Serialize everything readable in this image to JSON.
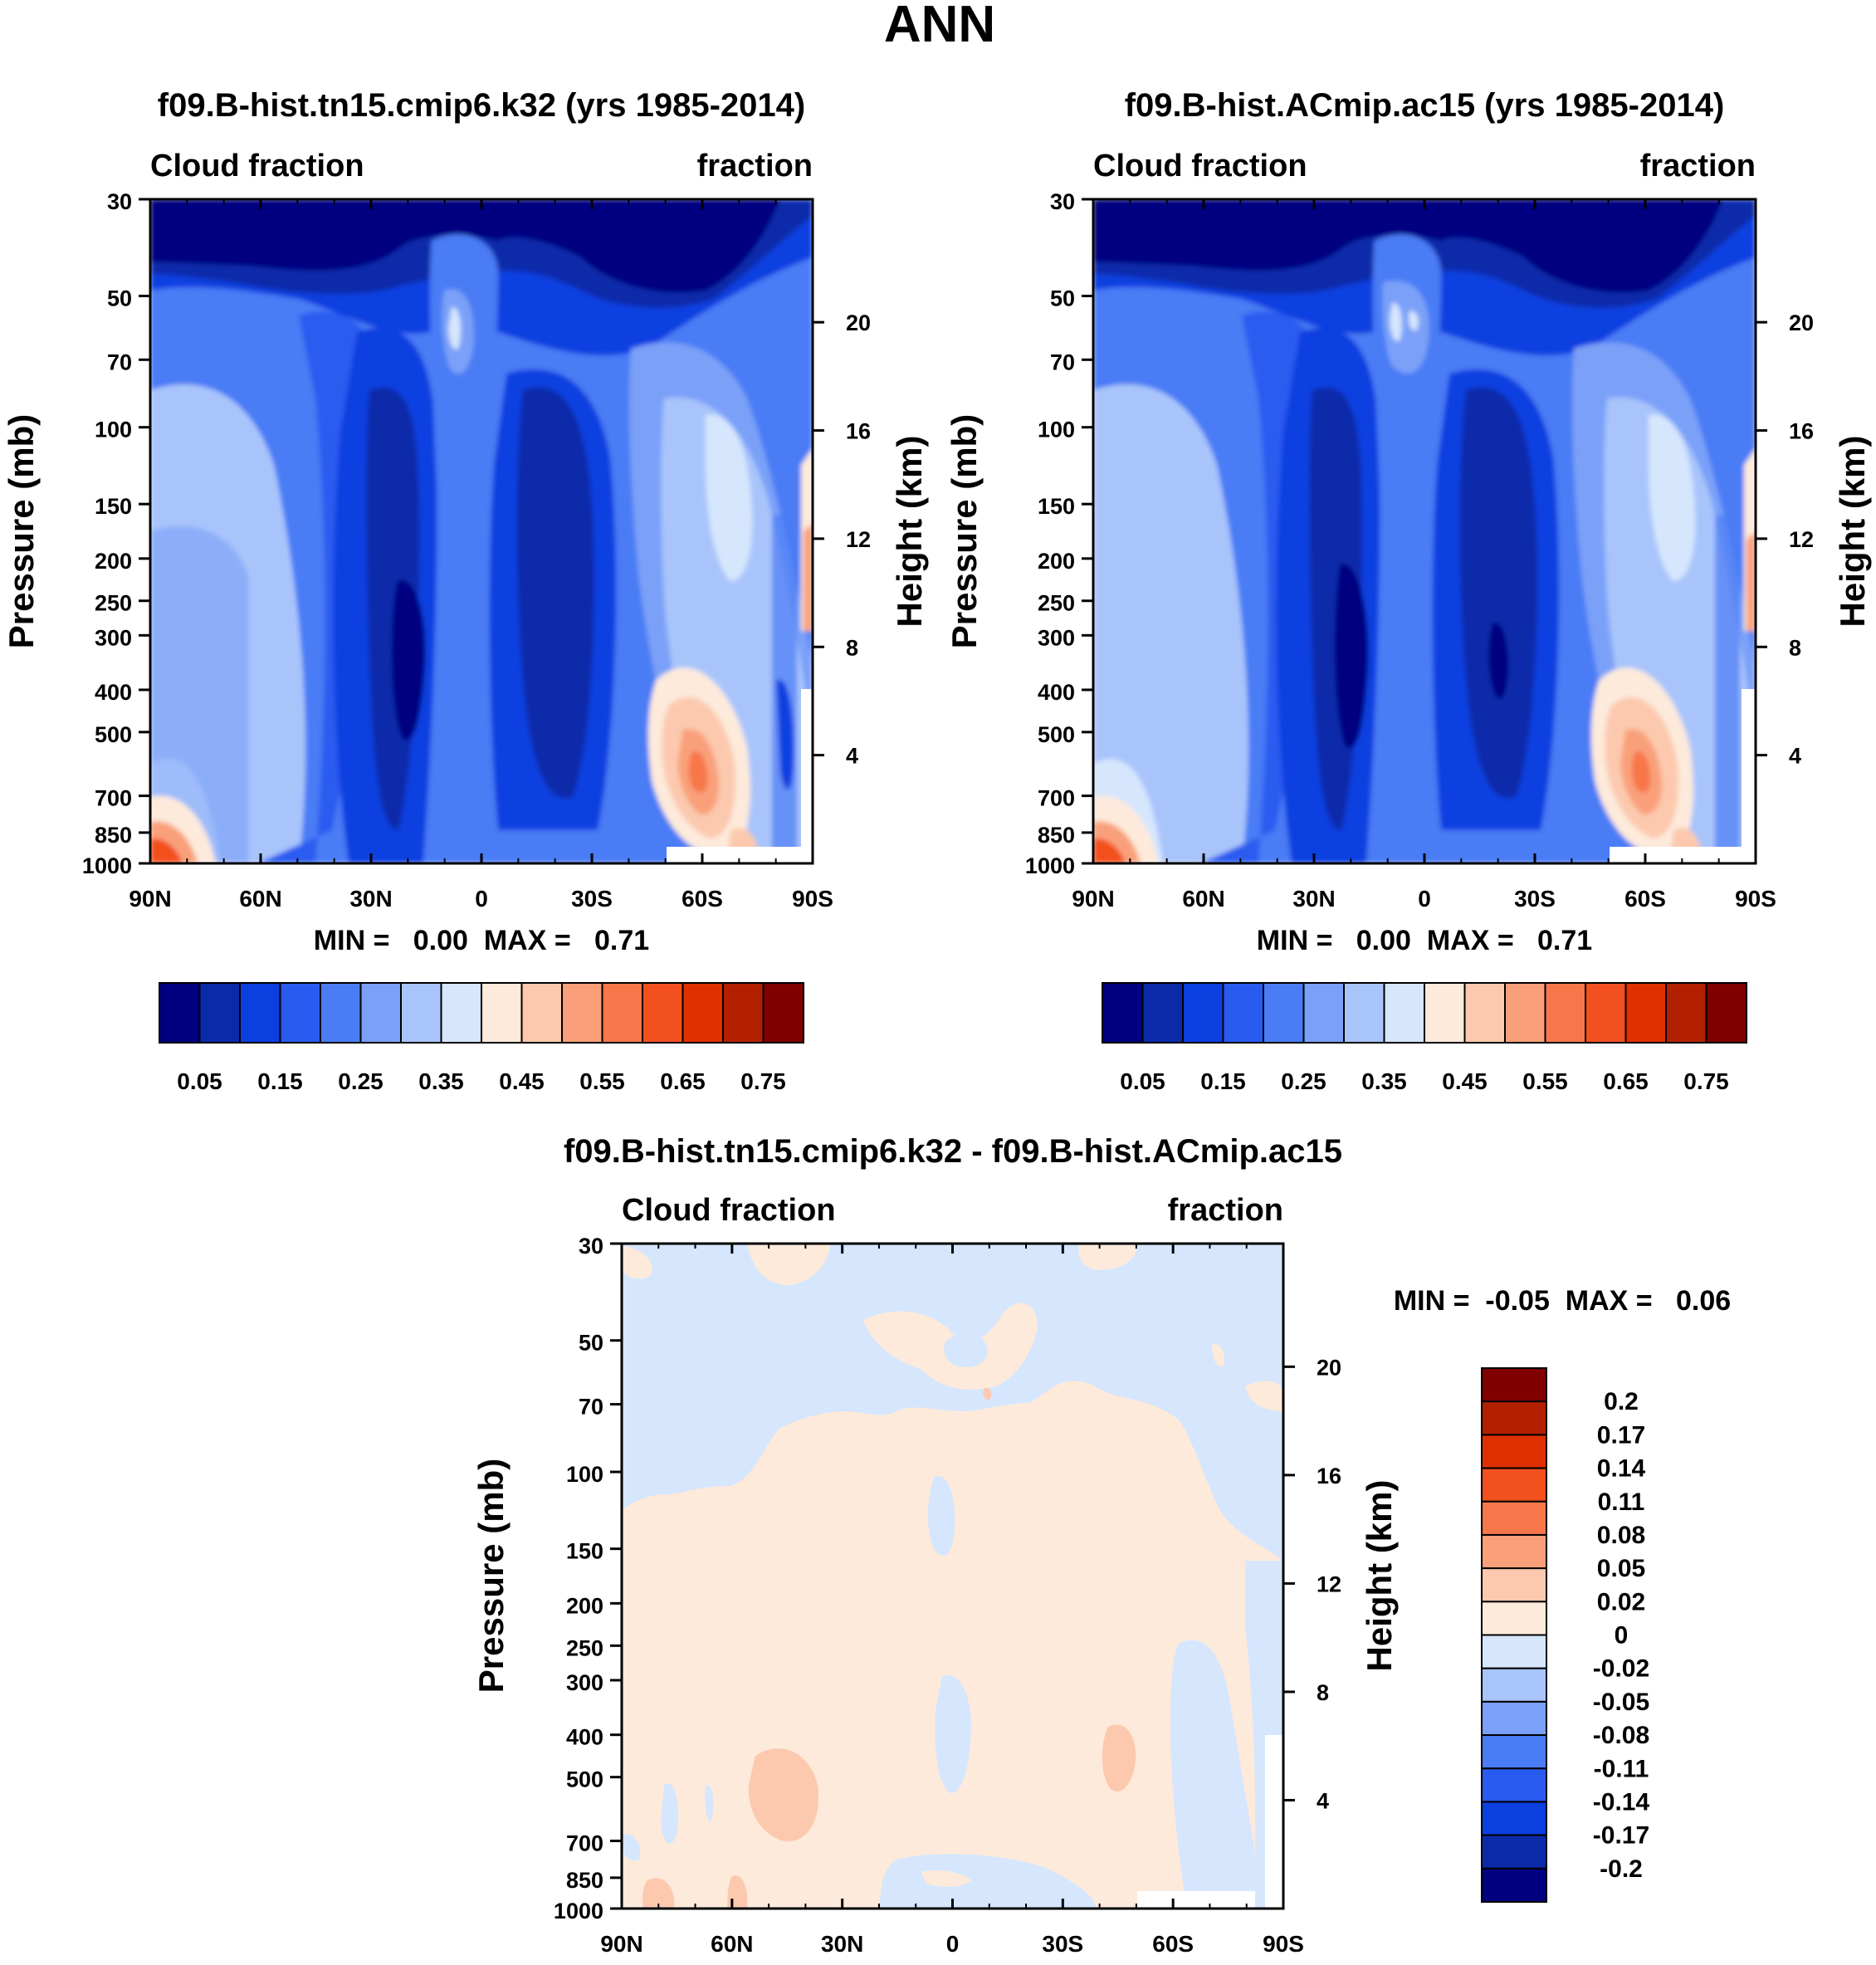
{
  "chart_data": {
    "type": "contour",
    "title": "ANN",
    "colors": {
      "absolute": [
        "#000080",
        "#0a2aaa",
        "#0a3fe0",
        "#2a5bf0",
        "#4a7cf5",
        "#7aa0f8",
        "#a8c4fb",
        "#d5e6fd",
        "#fdeadb",
        "#fcc9ae",
        "#f9a07a",
        "#f7774a",
        "#f2501f",
        "#e03000",
        "#b32000",
        "#800000"
      ],
      "difference": [
        "#000080",
        "#0a2aaa",
        "#0a3fe0",
        "#2a5bf0",
        "#4a7cf5",
        "#7aa0f8",
        "#a8c4fb",
        "#d5e6fd",
        "#fdeadb",
        "#fcc9ae",
        "#f9a07a",
        "#f7774a",
        "#f2501f",
        "#e03000",
        "#b32000",
        "#800000"
      ]
    },
    "panels": [
      {
        "id": "case",
        "title": "f09.B-hist.tn15.cmip6.k32 (yrs 1985-2014)",
        "left_label": "Cloud fraction",
        "right_label": "fraction",
        "ylabel": "Pressure (mb)",
        "ylabel_right": "Height (km)",
        "x_ticks": [
          "90N",
          "60N",
          "30N",
          "0",
          "30S",
          "60S",
          "90S"
        ],
        "pressure_ticks": [
          "30",
          "50",
          "70",
          "100",
          "150",
          "200",
          "250",
          "300",
          "400",
          "500",
          "700",
          "850",
          "1000"
        ],
        "height_ticks": [
          "20",
          "16",
          "12",
          "8",
          "4"
        ],
        "stats_text": "MIN =   0.00  MAX =   0.71",
        "min": 0.0,
        "max": 0.71,
        "colorbar_labels": [
          "0.05",
          "0.15",
          "0.25",
          "0.35",
          "0.45",
          "0.55",
          "0.65",
          "0.75"
        ],
        "levels": [
          0.05,
          0.1,
          0.15,
          0.2,
          0.25,
          0.3,
          0.35,
          0.4,
          0.45,
          0.5,
          0.55,
          0.6,
          0.65,
          0.7,
          0.75
        ]
      },
      {
        "id": "reference",
        "title": "f09.B-hist.ACmip.ac15 (yrs 1985-2014)",
        "left_label": "Cloud fraction",
        "right_label": "fraction",
        "ylabel": "Pressure (mb)",
        "ylabel_right": "Height (km)",
        "x_ticks": [
          "90N",
          "60N",
          "30N",
          "0",
          "30S",
          "60S",
          "90S"
        ],
        "pressure_ticks": [
          "30",
          "50",
          "70",
          "100",
          "150",
          "200",
          "250",
          "300",
          "400",
          "500",
          "700",
          "850",
          "1000"
        ],
        "height_ticks": [
          "20",
          "16",
          "12",
          "8",
          "4"
        ],
        "stats_text": "MIN =   0.00  MAX =   0.71",
        "min": 0.0,
        "max": 0.71,
        "colorbar_labels": [
          "0.05",
          "0.15",
          "0.25",
          "0.35",
          "0.45",
          "0.55",
          "0.65",
          "0.75"
        ],
        "levels": [
          0.05,
          0.1,
          0.15,
          0.2,
          0.25,
          0.3,
          0.35,
          0.4,
          0.45,
          0.5,
          0.55,
          0.6,
          0.65,
          0.7,
          0.75
        ]
      },
      {
        "id": "difference",
        "title": "f09.B-hist.tn15.cmip6.k32 - f09.B-hist.ACmip.ac15",
        "left_label": "Cloud fraction",
        "right_label": "fraction",
        "ylabel": "Pressure (mb)",
        "ylabel_right": "Height (km)",
        "x_ticks": [
          "90N",
          "60N",
          "30N",
          "0",
          "30S",
          "60S",
          "90S"
        ],
        "pressure_ticks": [
          "30",
          "50",
          "70",
          "100",
          "150",
          "200",
          "250",
          "300",
          "400",
          "500",
          "700",
          "850",
          "1000"
        ],
        "height_ticks": [
          "20",
          "16",
          "12",
          "8",
          "4"
        ],
        "stats_text": "MIN =  -0.05  MAX =   0.06",
        "min": -0.05,
        "max": 0.06,
        "colorbar_labels": [
          "0.2",
          "0.17",
          "0.14",
          "0.11",
          "0.08",
          "0.05",
          "0.02",
          "0",
          "-0.02",
          "-0.05",
          "-0.08",
          "-0.11",
          "-0.14",
          "-0.17",
          "-0.2"
        ],
        "levels": [
          -0.2,
          -0.17,
          -0.14,
          -0.11,
          -0.08,
          -0.05,
          -0.02,
          0,
          0.02,
          0.05,
          0.08,
          0.11,
          0.14,
          0.17,
          0.2
        ]
      }
    ],
    "y_axis": {
      "variable": "pressure",
      "units": "mb",
      "range": [
        1000,
        30
      ],
      "scale": "log"
    },
    "y2_axis": {
      "variable": "height",
      "units": "km"
    },
    "x_axis": {
      "variable": "latitude",
      "range": [
        90,
        -90
      ]
    }
  }
}
